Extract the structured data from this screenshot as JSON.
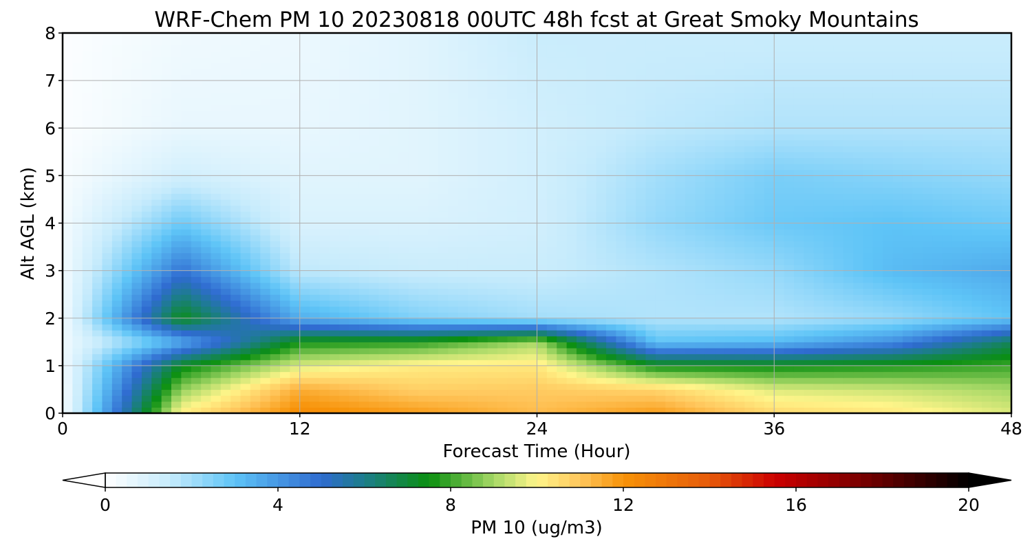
{
  "chart_data": {
    "type": "heatmap",
    "title": "WRF-Chem PM 10  20230818 00UTC 48h fcst at Great Smoky Mountains",
    "xlabel": "Forecast Time (Hour)",
    "ylabel": "Alt AGL (km)",
    "xlim": [
      0,
      48
    ],
    "ylim": [
      0,
      8
    ],
    "x_ticks": [
      "0",
      "12",
      "24",
      "36",
      "48"
    ],
    "y_ticks": [
      "0",
      "1",
      "2",
      "3",
      "4",
      "5",
      "6",
      "7",
      "8"
    ],
    "grid": true,
    "x": [
      0,
      6,
      12,
      18,
      24,
      30,
      36,
      42,
      48
    ],
    "y": [
      0,
      0.5,
      1,
      1.5,
      2,
      3,
      4,
      5,
      6,
      8
    ],
    "z": [
      [
        0.2,
        10.2,
        12.2,
        11.8,
        11.2,
        11.8,
        10.6,
        10.3,
        9.6
      ],
      [
        0.2,
        8.8,
        11.5,
        10.8,
        10.9,
        10.7,
        9.6,
        9.4,
        9.0
      ],
      [
        0.3,
        7.3,
        9.6,
        10.2,
        10.3,
        7.5,
        7.5,
        7.7,
        8.0
      ],
      [
        0.4,
        3.5,
        7.6,
        7.8,
        9.0,
        3.0,
        3.2,
        4.2,
        6.6
      ],
      [
        0.3,
        7.4,
        3.5,
        2.5,
        2.0,
        1.8,
        1.8,
        2.2,
        3.0
      ],
      [
        0.3,
        4.8,
        1.6,
        1.4,
        1.4,
        1.8,
        2.2,
        3.2,
        3.6
      ],
      [
        0.3,
        2.8,
        1.0,
        1.0,
        1.2,
        2.2,
        2.8,
        3.0,
        2.8
      ],
      [
        0.2,
        1.2,
        0.8,
        0.8,
        1.2,
        2.0,
        2.6,
        2.4,
        2.2
      ],
      [
        0.1,
        0.6,
        0.6,
        0.8,
        1.2,
        1.6,
        1.8,
        1.8,
        1.8
      ],
      [
        0.1,
        0.4,
        0.5,
        0.8,
        1.4,
        1.4,
        1.4,
        1.4,
        1.4
      ]
    ],
    "colorbar": {
      "label": "PM 10  (ug/m3)",
      "range": [
        0,
        20
      ],
      "ticks": [
        "0",
        "4",
        "8",
        "12",
        "16",
        "20"
      ],
      "extend": "both",
      "stops": [
        {
          "v": 0,
          "c": "#ffffff"
        },
        {
          "v": 1.5,
          "c": "#c6ebfc"
        },
        {
          "v": 3,
          "c": "#5ec4f7"
        },
        {
          "v": 5,
          "c": "#2f6bd0"
        },
        {
          "v": 6,
          "c": "#1c7d8a"
        },
        {
          "v": 7.5,
          "c": "#0a8f10"
        },
        {
          "v": 9,
          "c": "#a6d866"
        },
        {
          "v": 10,
          "c": "#fff58a"
        },
        {
          "v": 11,
          "c": "#ffc65c"
        },
        {
          "v": 12,
          "c": "#f79208"
        },
        {
          "v": 14,
          "c": "#e65a0a"
        },
        {
          "v": 15.5,
          "c": "#cc0000"
        },
        {
          "v": 17.5,
          "c": "#7a0000"
        },
        {
          "v": 20,
          "c": "#000000"
        }
      ]
    }
  }
}
